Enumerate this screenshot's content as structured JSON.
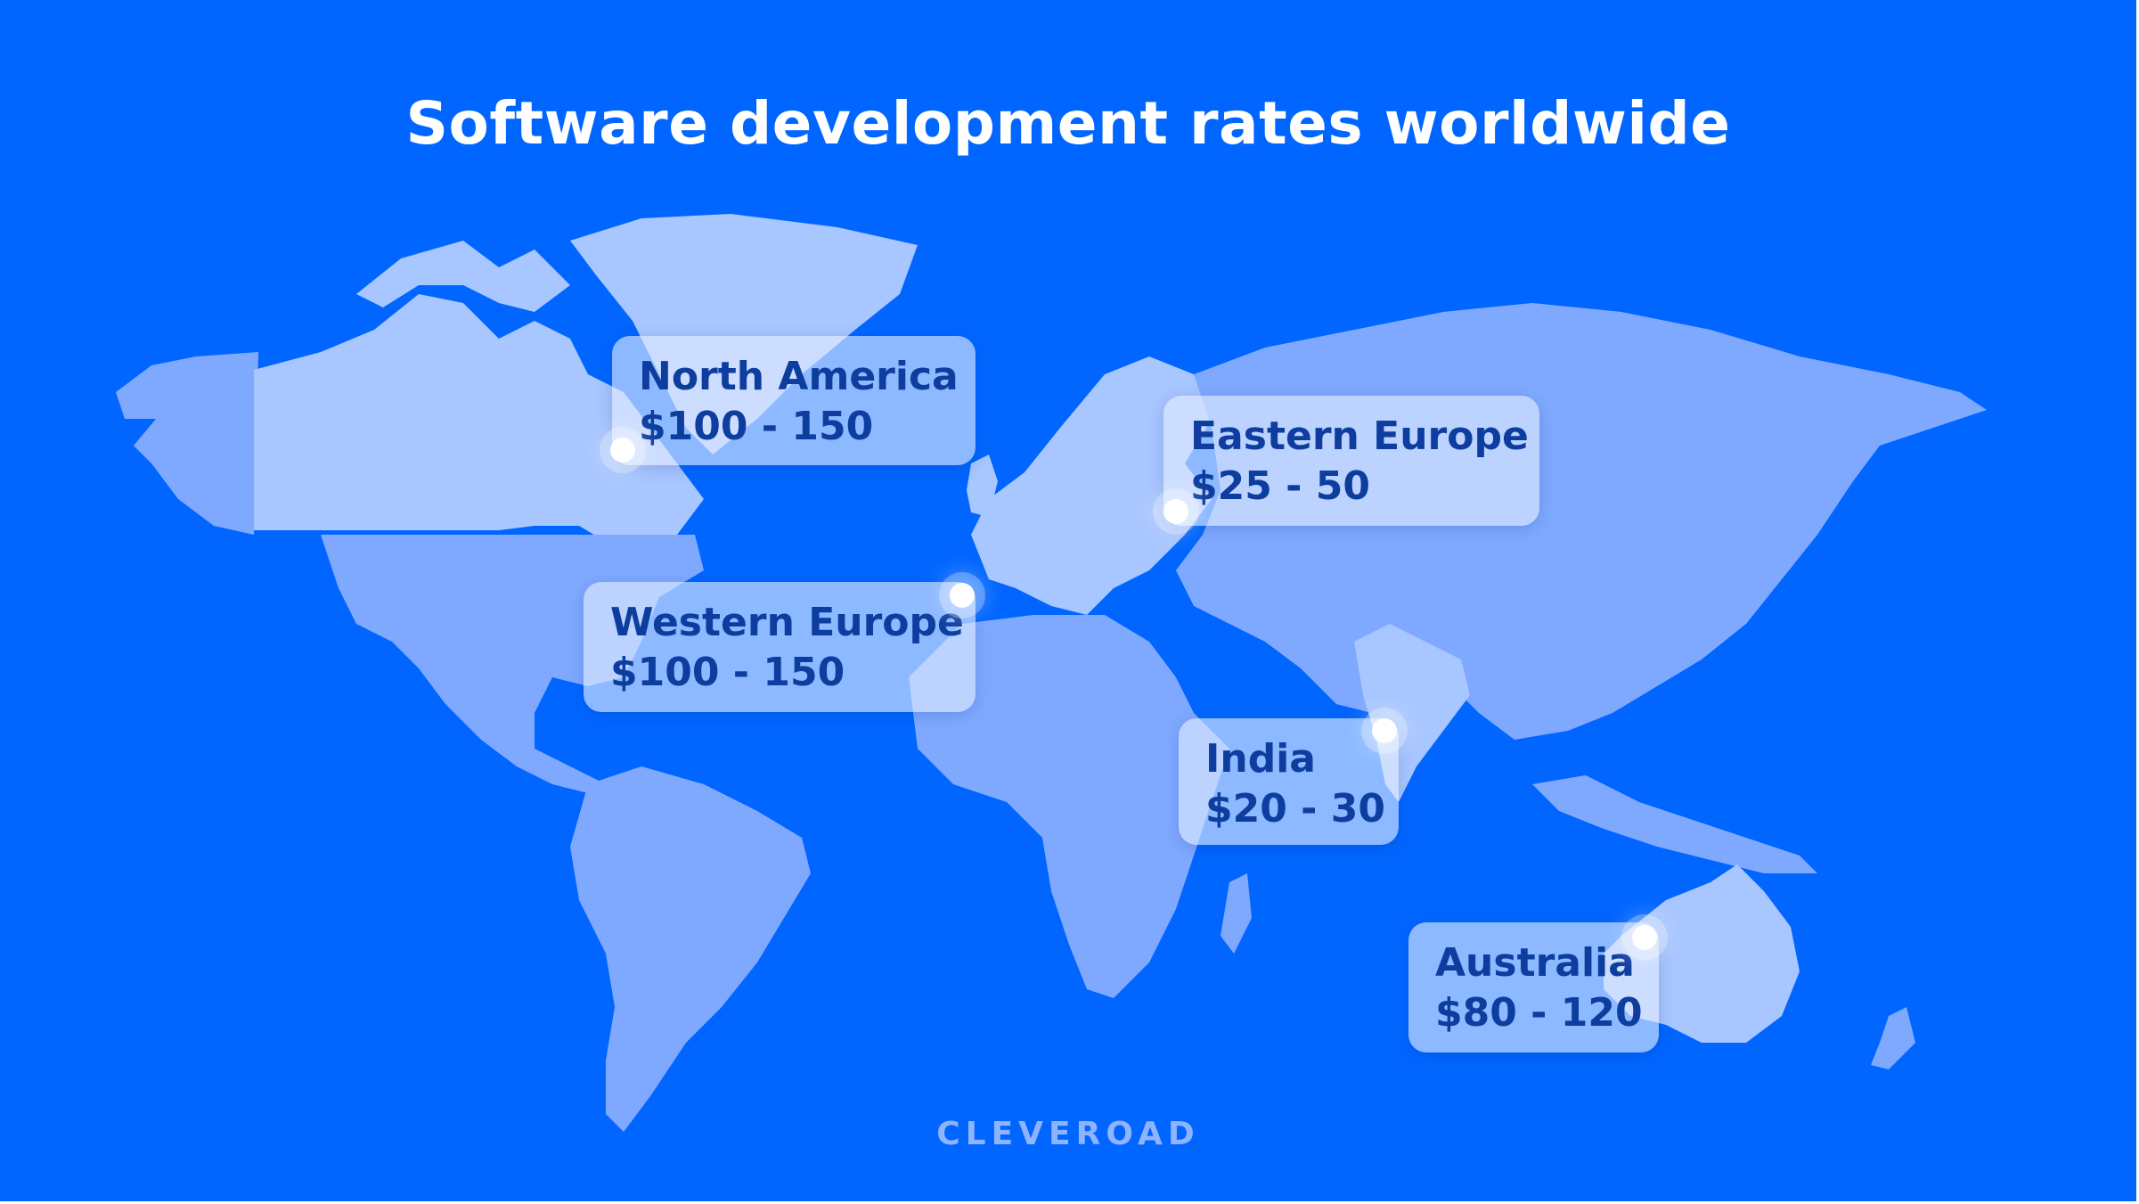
{
  "title": "Software development rates worldwide",
  "brand": "CLEVEROAD",
  "colors": {
    "background": "#0066ff",
    "land_light": "#a8c6ff",
    "land_mid": "#7fa9ff",
    "card_text": "#0d3d9e"
  },
  "regions": [
    {
      "name": "North America",
      "rate": "$100 - 150"
    },
    {
      "name": "Eastern Europe",
      "rate": "$25 - 50"
    },
    {
      "name": "Western Europe",
      "rate": "$100 - 150"
    },
    {
      "name": "India",
      "rate": "$20 - 30"
    },
    {
      "name": "Australia",
      "rate": "$80 - 120"
    }
  ]
}
